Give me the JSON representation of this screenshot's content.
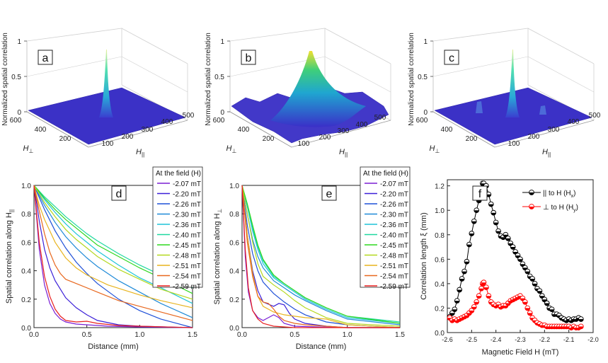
{
  "chart_data": [
    {
      "id": "a",
      "type": "surface3d",
      "panel_label": "a",
      "zlabel": "Normalized spatial correlation",
      "zticks": [
        "0",
        "0.5",
        "1"
      ],
      "perp_label": "H⊥",
      "par_label": "H||",
      "perp_ticks": [
        "600",
        "400",
        "200"
      ],
      "par_ticks": [
        "100",
        "200",
        "300",
        "400",
        "500"
      ],
      "peak_height": 1.0,
      "description_peak": "narrow"
    },
    {
      "id": "b",
      "type": "surface3d",
      "panel_label": "b",
      "zlabel": "Normalized spatial correlation",
      "zticks": [
        "0",
        "0.5",
        "1"
      ],
      "perp_label": "H⊥",
      "par_label": "H||",
      "perp_ticks": [
        "600",
        "400",
        "200"
      ],
      "par_ticks": [
        "100",
        "200",
        "300",
        "400",
        "500"
      ],
      "peak_height": 1.0,
      "description_peak": "broad"
    },
    {
      "id": "c",
      "type": "surface3d",
      "panel_label": "c",
      "zlabel": "Normalized spatial correlation",
      "zticks": [
        "0",
        "0.5",
        "1"
      ],
      "perp_label": "H⊥",
      "par_label": "H||",
      "perp_ticks": [
        "600",
        "400",
        "200"
      ],
      "par_ticks": [
        "100",
        "200",
        "300",
        "400",
        "500"
      ],
      "peak_height": 1.0,
      "description_peak": "narrow with satellites"
    },
    {
      "id": "d",
      "type": "line",
      "panel_label": "d",
      "xlabel": "Distance (mm)",
      "ylabel": "Spatial correlation along H||",
      "xlim": [
        0,
        1.5
      ],
      "ylim": [
        0,
        1.0
      ],
      "xticks": [
        "0.0",
        "0.5",
        "1.0",
        "1.5"
      ],
      "yticks": [
        "0.0",
        "0.2",
        "0.4",
        "0.6",
        "0.8",
        "1.0"
      ],
      "legend_title": "At the field (H)",
      "series": [
        {
          "name": "-2.07 mT",
          "color": "#7b1fd4",
          "x": [
            0,
            0.05,
            0.1,
            0.15,
            0.2,
            0.25,
            0.3,
            0.4,
            0.5,
            0.7,
            1.0,
            1.5
          ],
          "y": [
            1,
            0.55,
            0.3,
            0.17,
            0.1,
            0.06,
            0.04,
            0.025,
            0.02,
            0.01,
            0.005,
            0
          ]
        },
        {
          "name": "-2.20 mT",
          "color": "#3b1fd8",
          "x": [
            0,
            0.05,
            0.1,
            0.15,
            0.2,
            0.3,
            0.4,
            0.5,
            0.6,
            0.8,
            1.0,
            1.5
          ],
          "y": [
            1,
            0.75,
            0.55,
            0.42,
            0.33,
            0.21,
            0.14,
            0.09,
            0.05,
            0.02,
            0.01,
            0
          ]
        },
        {
          "name": "-2.26 mT",
          "color": "#1f50d8",
          "x": [
            0,
            0.1,
            0.2,
            0.3,
            0.4,
            0.5,
            0.6,
            0.8,
            1.0,
            1.2,
            1.5
          ],
          "y": [
            1,
            0.83,
            0.68,
            0.56,
            0.46,
            0.38,
            0.31,
            0.2,
            0.12,
            0.06,
            0
          ]
        },
        {
          "name": "-2.30 mT",
          "color": "#1f8ad8",
          "x": [
            0,
            0.1,
            0.2,
            0.3,
            0.4,
            0.5,
            0.6,
            0.8,
            1.0,
            1.2,
            1.5
          ],
          "y": [
            1,
            0.86,
            0.74,
            0.64,
            0.56,
            0.49,
            0.43,
            0.33,
            0.25,
            0.17,
            0.07
          ]
        },
        {
          "name": "-2.36 mT",
          "color": "#1fc4d8",
          "x": [
            0,
            0.1,
            0.2,
            0.3,
            0.4,
            0.5,
            0.6,
            0.8,
            1.0,
            1.2,
            1.5
          ],
          "y": [
            1,
            0.9,
            0.81,
            0.73,
            0.66,
            0.6,
            0.54,
            0.44,
            0.35,
            0.28,
            0.17
          ]
        },
        {
          "name": "-2.40 mT",
          "color": "#1fd8a0",
          "x": [
            0,
            0.1,
            0.2,
            0.3,
            0.4,
            0.5,
            0.6,
            0.8,
            1.0,
            1.2,
            1.5
          ],
          "y": [
            1,
            0.92,
            0.85,
            0.78,
            0.72,
            0.66,
            0.61,
            0.52,
            0.44,
            0.37,
            0.28
          ]
        },
        {
          "name": "-2.45 mT",
          "color": "#2fd81f",
          "x": [
            0,
            0.1,
            0.2,
            0.3,
            0.4,
            0.5,
            0.6,
            0.8,
            1.0,
            1.2,
            1.5
          ],
          "y": [
            1,
            0.91,
            0.83,
            0.76,
            0.7,
            0.64,
            0.58,
            0.5,
            0.42,
            0.35,
            0.24
          ]
        },
        {
          "name": "-2.48 mT",
          "color": "#b4d81f",
          "x": [
            0,
            0.1,
            0.2,
            0.3,
            0.4,
            0.5,
            0.6,
            0.8,
            1.0,
            1.2,
            1.5
          ],
          "y": [
            1,
            0.88,
            0.78,
            0.69,
            0.62,
            0.56,
            0.5,
            0.41,
            0.34,
            0.27,
            0.2
          ]
        },
        {
          "name": "-2.51 mT",
          "color": "#e8b41f",
          "x": [
            0,
            0.05,
            0.1,
            0.15,
            0.2,
            0.3,
            0.4,
            0.5,
            0.7,
            1.0,
            1.2,
            1.5
          ],
          "y": [
            1,
            0.86,
            0.76,
            0.68,
            0.6,
            0.49,
            0.42,
            0.37,
            0.3,
            0.23,
            0.19,
            0.14
          ]
        },
        {
          "name": "-2.54 mT",
          "color": "#e8681f",
          "x": [
            0,
            0.05,
            0.1,
            0.15,
            0.2,
            0.25,
            0.3,
            0.4,
            0.6,
            0.8,
            1.0,
            1.2,
            1.5
          ],
          "y": [
            1,
            0.82,
            0.66,
            0.53,
            0.44,
            0.38,
            0.34,
            0.31,
            0.25,
            0.19,
            0.15,
            0.11,
            0.05
          ]
        },
        {
          "name": "-2.59 mT",
          "color": "#e81f1f",
          "x": [
            0,
            0.05,
            0.1,
            0.15,
            0.2,
            0.25,
            0.3,
            0.4,
            0.5,
            0.6,
            0.8,
            1.0,
            1.5
          ],
          "y": [
            1,
            0.6,
            0.36,
            0.22,
            0.13,
            0.08,
            0.05,
            0.04,
            0.045,
            0.03,
            0.015,
            0.01,
            0
          ]
        }
      ]
    },
    {
      "id": "e",
      "type": "line",
      "panel_label": "e",
      "xlabel": "Distance (mm)",
      "ylabel": "Spatial correlation along H⊥",
      "xlim": [
        0,
        1.5
      ],
      "ylim": [
        0,
        1.0
      ],
      "xticks": [
        "0.0",
        "0.5",
        "1.0",
        "1.5"
      ],
      "yticks": [
        "0.0",
        "0.2",
        "0.4",
        "0.6",
        "0.8",
        "1.0"
      ],
      "legend_title": "At the field (H)",
      "series": [
        {
          "name": "-2.07 mT",
          "color": "#7b1fd4",
          "x": [
            0,
            0.03,
            0.06,
            0.1,
            0.15,
            0.2,
            0.25,
            0.3,
            0.35,
            0.4,
            0.5,
            0.7,
            1.0,
            1.5
          ],
          "y": [
            1,
            0.5,
            0.25,
            0.12,
            0.07,
            0.05,
            0.07,
            0.09,
            0.07,
            0.03,
            0.01,
            0.005,
            0,
            0
          ]
        },
        {
          "name": "-2.20 mT",
          "color": "#3b1fd8",
          "x": [
            0,
            0.05,
            0.1,
            0.15,
            0.2,
            0.3,
            0.35,
            0.4,
            0.45,
            0.5,
            0.6,
            0.8,
            1.0,
            1.5
          ],
          "y": [
            1,
            0.65,
            0.4,
            0.26,
            0.18,
            0.15,
            0.17,
            0.16,
            0.1,
            0.06,
            0.03,
            0.01,
            0,
            0
          ]
        },
        {
          "name": "-2.26 mT",
          "color": "#1f50d8",
          "x": [
            0,
            0.05,
            0.1,
            0.15,
            0.2,
            0.3,
            0.4,
            0.5,
            0.6,
            0.8,
            1.0,
            1.5
          ],
          "y": [
            1,
            0.72,
            0.52,
            0.4,
            0.32,
            0.24,
            0.18,
            0.13,
            0.09,
            0.04,
            0.02,
            0
          ]
        },
        {
          "name": "-2.30 mT",
          "color": "#1f8ad8",
          "x": [
            0,
            0.05,
            0.1,
            0.15,
            0.2,
            0.3,
            0.4,
            0.5,
            0.6,
            0.8,
            1.0,
            1.5
          ],
          "y": [
            1,
            0.8,
            0.62,
            0.5,
            0.42,
            0.33,
            0.28,
            0.23,
            0.19,
            0.12,
            0.06,
            0.02
          ]
        },
        {
          "name": "-2.36 mT",
          "color": "#1fc4d8",
          "x": [
            0,
            0.05,
            0.1,
            0.15,
            0.2,
            0.3,
            0.4,
            0.5,
            0.6,
            0.8,
            1.0,
            1.5
          ],
          "y": [
            1,
            0.85,
            0.68,
            0.55,
            0.45,
            0.35,
            0.3,
            0.25,
            0.2,
            0.13,
            0.07,
            0.03
          ]
        },
        {
          "name": "-2.40 mT",
          "color": "#1fd8a0",
          "x": [
            0,
            0.05,
            0.1,
            0.15,
            0.2,
            0.3,
            0.4,
            0.5,
            0.6,
            0.8,
            1.0,
            1.5
          ],
          "y": [
            1,
            0.86,
            0.7,
            0.57,
            0.47,
            0.36,
            0.31,
            0.26,
            0.21,
            0.14,
            0.08,
            0.04
          ]
        },
        {
          "name": "-2.45 mT",
          "color": "#2fd81f",
          "x": [
            0,
            0.05,
            0.1,
            0.15,
            0.2,
            0.3,
            0.4,
            0.5,
            0.6,
            0.8,
            1.0,
            1.5
          ],
          "y": [
            1,
            0.87,
            0.72,
            0.58,
            0.48,
            0.37,
            0.31,
            0.26,
            0.21,
            0.14,
            0.08,
            0.03
          ]
        },
        {
          "name": "-2.48 mT",
          "color": "#b4d81f",
          "x": [
            0,
            0.05,
            0.1,
            0.15,
            0.2,
            0.25,
            0.3,
            0.4,
            0.5,
            0.6,
            0.8,
            1.0,
            1.5
          ],
          "y": [
            1,
            0.8,
            0.6,
            0.45,
            0.36,
            0.33,
            0.3,
            0.25,
            0.19,
            0.14,
            0.07,
            0.03,
            0.01
          ]
        },
        {
          "name": "-2.51 mT",
          "color": "#e8b41f",
          "x": [
            0,
            0.05,
            0.1,
            0.15,
            0.2,
            0.3,
            0.4,
            0.5,
            0.6,
            0.8,
            0.9,
            1.0,
            1.5
          ],
          "y": [
            1,
            0.65,
            0.38,
            0.22,
            0.15,
            0.11,
            0.09,
            0.08,
            0.07,
            0.06,
            0.04,
            0.02,
            0
          ]
        },
        {
          "name": "-2.54 mT",
          "color": "#e8681f",
          "x": [
            0,
            0.05,
            0.1,
            0.15,
            0.2,
            0.25,
            0.3,
            0.35,
            0.4,
            0.5,
            0.6,
            0.8,
            1.0,
            1.5
          ],
          "y": [
            1,
            0.6,
            0.36,
            0.22,
            0.18,
            0.17,
            0.13,
            0.08,
            0.05,
            0.03,
            0.02,
            0.01,
            0,
            0
          ]
        },
        {
          "name": "-2.59 mT",
          "color": "#e81f1f",
          "x": [
            0,
            0.03,
            0.06,
            0.1,
            0.15,
            0.2,
            0.3,
            0.5,
            1.0,
            1.5
          ],
          "y": [
            1,
            0.55,
            0.28,
            0.12,
            0.06,
            0.03,
            0.01,
            0,
            0,
            0
          ]
        }
      ]
    },
    {
      "id": "f",
      "type": "scatter",
      "panel_label": "f",
      "xlabel": "Magnetic Field H (mT)",
      "ylabel": "Correlation length ξ (mm)",
      "xlim": [
        -2.6,
        -2.0
      ],
      "ylim": [
        0,
        1.25
      ],
      "xticks": [
        "-2.6",
        "-2.5",
        "-2.4",
        "-2.3",
        "-2.2",
        "-2.1",
        "-2.0"
      ],
      "yticks": [
        "0.0",
        "0.2",
        "0.4",
        "0.6",
        "0.8",
        "1.0",
        "1.2"
      ],
      "series": [
        {
          "name": "|| to H (H",
          "sub": "x",
          "tail": ")",
          "color": "#000000",
          "x": [
            -2.59,
            -2.58,
            -2.57,
            -2.56,
            -2.55,
            -2.54,
            -2.53,
            -2.52,
            -2.51,
            -2.5,
            -2.49,
            -2.48,
            -2.47,
            -2.46,
            -2.455,
            -2.45,
            -2.44,
            -2.43,
            -2.42,
            -2.41,
            -2.4,
            -2.39,
            -2.38,
            -2.37,
            -2.36,
            -2.35,
            -2.34,
            -2.33,
            -2.32,
            -2.31,
            -2.3,
            -2.29,
            -2.28,
            -2.27,
            -2.26,
            -2.25,
            -2.24,
            -2.23,
            -2.22,
            -2.21,
            -2.2,
            -2.19,
            -2.18,
            -2.17,
            -2.16,
            -2.15,
            -2.14,
            -2.13,
            -2.12,
            -2.11,
            -2.1,
            -2.09,
            -2.08,
            -2.07,
            -2.06,
            -2.05
          ],
          "y": [
            0.13,
            0.16,
            0.19,
            0.26,
            0.35,
            0.44,
            0.5,
            0.58,
            0.72,
            0.81,
            0.91,
            1.0,
            1.08,
            1.17,
            1.22,
            1.22,
            1.2,
            1.13,
            1.05,
            0.98,
            0.9,
            0.83,
            0.79,
            0.78,
            0.8,
            0.77,
            0.73,
            0.7,
            0.66,
            0.63,
            0.6,
            0.56,
            0.53,
            0.5,
            0.46,
            0.44,
            0.4,
            0.36,
            0.34,
            0.3,
            0.27,
            0.24,
            0.2,
            0.19,
            0.15,
            0.15,
            0.14,
            0.12,
            0.11,
            0.1,
            0.11,
            0.1,
            0.11,
            0.11,
            0.12,
            0.11
          ]
        },
        {
          "name": "⊥ to H (H",
          "sub": "y",
          "tail": ")",
          "color": "#ff0000",
          "x": [
            -2.59,
            -2.58,
            -2.57,
            -2.56,
            -2.55,
            -2.54,
            -2.53,
            -2.52,
            -2.51,
            -2.5,
            -2.49,
            -2.48,
            -2.47,
            -2.46,
            -2.455,
            -2.45,
            -2.44,
            -2.43,
            -2.42,
            -2.41,
            -2.4,
            -2.39,
            -2.38,
            -2.37,
            -2.36,
            -2.35,
            -2.34,
            -2.33,
            -2.32,
            -2.31,
            -2.3,
            -2.29,
            -2.28,
            -2.27,
            -2.26,
            -2.25,
            -2.24,
            -2.23,
            -2.22,
            -2.21,
            -2.2,
            -2.19,
            -2.18,
            -2.17,
            -2.16,
            -2.15,
            -2.14,
            -2.13,
            -2.12,
            -2.11,
            -2.1,
            -2.09,
            -2.08,
            -2.07,
            -2.06,
            -2.05
          ],
          "y": [
            0.12,
            0.1,
            0.11,
            0.1,
            0.11,
            0.12,
            0.13,
            0.14,
            0.16,
            0.18,
            0.21,
            0.25,
            0.3,
            0.36,
            0.4,
            0.41,
            0.37,
            0.3,
            0.25,
            0.23,
            0.22,
            0.23,
            0.21,
            0.22,
            0.22,
            0.24,
            0.26,
            0.27,
            0.28,
            0.29,
            0.3,
            0.28,
            0.25,
            0.2,
            0.16,
            0.12,
            0.1,
            0.08,
            0.07,
            0.06,
            0.06,
            0.05,
            0.05,
            0.05,
            0.05,
            0.05,
            0.05,
            0.05,
            0.05,
            0.05,
            0.05,
            0.04,
            0.05,
            0.04,
            0.04,
            0.05
          ]
        }
      ]
    }
  ]
}
